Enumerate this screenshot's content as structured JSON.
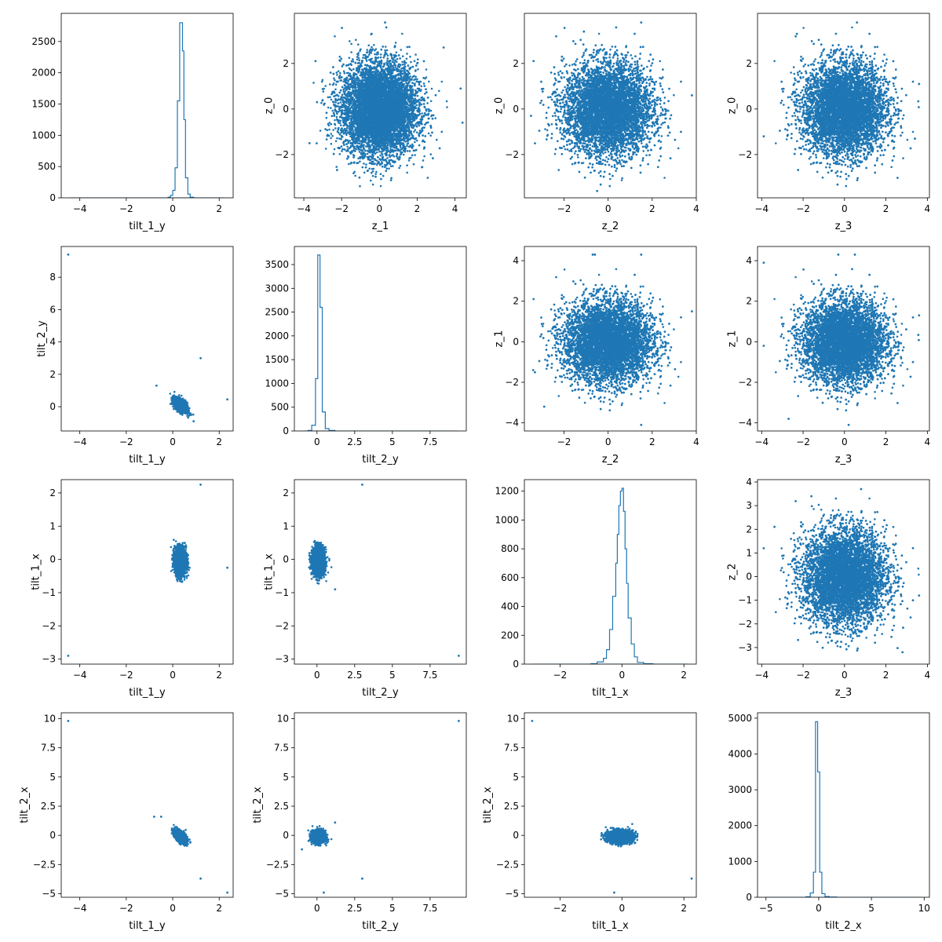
{
  "figure": {
    "color": "#1f77b4"
  },
  "chart_data": [
    {
      "type": "histogram",
      "xlabel": "tilt_1_y",
      "ylabel": "",
      "xlim": [
        -4.8,
        2.6
      ],
      "ylim": [
        0,
        2950
      ],
      "xticks": [
        -4,
        -2,
        0,
        2
      ],
      "yticks": [
        0,
        500,
        1000,
        1500,
        2000,
        2500
      ],
      "bins": [
        [
          -0.2,
          -0.1,
          10
        ],
        [
          -0.1,
          0.0,
          40
        ],
        [
          0.0,
          0.1,
          120
        ],
        [
          0.1,
          0.2,
          480
        ],
        [
          0.2,
          0.3,
          1550
        ],
        [
          0.3,
          0.35,
          2800
        ],
        [
          0.35,
          0.42,
          2800
        ],
        [
          0.42,
          0.48,
          2350
        ],
        [
          0.48,
          0.55,
          1250
        ],
        [
          0.55,
          0.65,
          320
        ],
        [
          0.65,
          0.75,
          60
        ],
        [
          0.75,
          0.9,
          10
        ]
      ]
    },
    {
      "type": "scatter",
      "xlabel": "z_1",
      "ylabel": "z_0",
      "xlim": [
        -4.5,
        4.6
      ],
      "ylim": [
        -3.9,
        4.2
      ],
      "xticks": [
        -4,
        -2,
        0,
        2,
        4
      ],
      "yticks": [
        -2,
        0,
        2
      ],
      "cloud": {
        "n": 9000,
        "cx": 0,
        "cy": 0,
        "sx": 1,
        "sy": 1,
        "clip": [
          -3.6,
          3.7,
          -3.5,
          3.6
        ]
      },
      "points": [
        [
          4.3,
          0.9
        ],
        [
          4.4,
          -0.6
        ],
        [
          0.3,
          3.8
        ],
        [
          -3.7,
          -1.5
        ],
        [
          3.4,
          2.7
        ],
        [
          -3.3,
          0.3
        ]
      ]
    },
    {
      "type": "scatter",
      "xlabel": "z_2",
      "ylabel": "z_0",
      "xlim": [
        -3.8,
        4.0
      ],
      "ylim": [
        -3.9,
        4.2
      ],
      "xticks": [
        -2,
        0,
        2,
        4
      ],
      "yticks": [
        -2,
        0,
        2
      ],
      "cloud": {
        "n": 9000,
        "cx": 0,
        "cy": 0,
        "sx": 1,
        "sy": 1,
        "clip": [
          -3.4,
          3.5,
          -3.5,
          3.6
        ]
      },
      "points": [
        [
          3.8,
          0.6
        ],
        [
          -3.5,
          -0.3
        ],
        [
          -0.5,
          -3.6
        ],
        [
          1.5,
          3.8
        ],
        [
          -1.1,
          3.4
        ]
      ]
    },
    {
      "type": "scatter",
      "xlabel": "z_3",
      "ylabel": "z_0",
      "xlim": [
        -4.2,
        4.1
      ],
      "ylim": [
        -3.9,
        4.2
      ],
      "xticks": [
        -4,
        -2,
        0,
        2,
        4
      ],
      "yticks": [
        -2,
        0,
        2
      ],
      "cloud": {
        "n": 9000,
        "cx": 0,
        "cy": 0,
        "sx": 1,
        "sy": 1,
        "clip": [
          -3.7,
          3.6,
          -3.5,
          3.6
        ]
      },
      "points": [
        [
          -3.9,
          -1.2
        ],
        [
          3.6,
          1.1
        ],
        [
          -2.3,
          3.3
        ],
        [
          0.6,
          3.8
        ],
        [
          3.4,
          -1.3
        ]
      ]
    },
    {
      "type": "scatter",
      "xlabel": "tilt_1_y",
      "ylabel": "tilt_2_y",
      "xlim": [
        -4.8,
        2.6
      ],
      "ylim": [
        -1.5,
        9.9
      ],
      "xticks": [
        -4,
        -2,
        0,
        2
      ],
      "yticks": [
        0,
        2,
        4,
        6,
        8
      ],
      "cloud": {
        "n": 2500,
        "cx": 0.33,
        "cy": 0.1,
        "sx": 0.13,
        "sy": 0.2,
        "rho": -0.5,
        "clip": [
          -0.9,
          1.0,
          -1.0,
          1.4
        ]
      },
      "points": [
        [
          -4.5,
          9.4
        ],
        [
          1.2,
          3.0
        ],
        [
          2.35,
          0.45
        ],
        [
          -0.7,
          1.3
        ],
        [
          0.9,
          -0.9
        ],
        [
          0.8,
          -0.5
        ]
      ]
    },
    {
      "type": "histogram",
      "xlabel": "tilt_2_y",
      "ylabel": "",
      "xlim": [
        -1.5,
        9.9
      ],
      "ylim": [
        0,
        3880
      ],
      "xticks": [
        0,
        2.5,
        5,
        7.5
      ],
      "yticks": [
        0,
        500,
        1000,
        1500,
        2000,
        2500,
        3000,
        3500
      ],
      "bins": [
        [
          -0.6,
          -0.35,
          10
        ],
        [
          -0.35,
          -0.1,
          120
        ],
        [
          -0.1,
          0.05,
          1100
        ],
        [
          0.05,
          0.2,
          3700
        ],
        [
          0.2,
          0.35,
          2600
        ],
        [
          0.35,
          0.55,
          400
        ],
        [
          0.55,
          0.8,
          50
        ],
        [
          0.8,
          1.2,
          10
        ]
      ]
    },
    {
      "type": "scatter",
      "xlabel": "z_2",
      "ylabel": "z_1",
      "xlim": [
        -3.8,
        4.0
      ],
      "ylim": [
        -4.4,
        4.7
      ],
      "xticks": [
        -2,
        0,
        2,
        4
      ],
      "yticks": [
        -4,
        -2,
        0,
        2,
        4
      ],
      "cloud": {
        "n": 9000,
        "cx": 0,
        "cy": 0,
        "sx": 1,
        "sy": 1,
        "clip": [
          -3.4,
          3.5,
          -3.8,
          3.8
        ]
      },
      "points": [
        [
          -0.7,
          4.3
        ],
        [
          -0.6,
          4.3
        ],
        [
          1.5,
          4.3
        ],
        [
          3.8,
          1.5
        ],
        [
          1.5,
          -4.1
        ],
        [
          -3.4,
          -1.4
        ],
        [
          -2.9,
          -3.2
        ]
      ]
    },
    {
      "type": "scatter",
      "xlabel": "z_3",
      "ylabel": "z_1",
      "xlim": [
        -4.2,
        4.1
      ],
      "ylim": [
        -4.4,
        4.7
      ],
      "xticks": [
        -4,
        -2,
        0,
        2,
        4
      ],
      "yticks": [
        -4,
        -2,
        0,
        2,
        4
      ],
      "cloud": {
        "n": 9000,
        "cx": 0,
        "cy": 0,
        "sx": 1,
        "sy": 1,
        "clip": [
          -3.7,
          3.6,
          -3.8,
          3.8
        ]
      },
      "points": [
        [
          -3.9,
          3.9
        ],
        [
          -0.3,
          4.3
        ],
        [
          0.5,
          4.3
        ],
        [
          3.6,
          1.3
        ],
        [
          -3.9,
          -0.2
        ],
        [
          0.2,
          -4.1
        ],
        [
          -2.7,
          -3.8
        ]
      ]
    },
    {
      "type": "scatter",
      "xlabel": "tilt_1_y",
      "ylabel": "tilt_1_x",
      "xlim": [
        -4.8,
        2.6
      ],
      "ylim": [
        -3.15,
        2.4
      ],
      "xticks": [
        -4,
        -2,
        0,
        2
      ],
      "yticks": [
        -3,
        -2,
        -1,
        0,
        1,
        2
      ],
      "cloud": {
        "n": 2500,
        "cx": 0.33,
        "cy": -0.05,
        "sx": 0.12,
        "sy": 0.2,
        "rho": 0,
        "clip": [
          -0.8,
          0.9,
          -0.9,
          0.6
        ]
      },
      "points": [
        [
          -4.5,
          -2.9
        ],
        [
          1.2,
          2.25
        ],
        [
          2.35,
          -0.25
        ]
      ]
    },
    {
      "type": "scatter",
      "xlabel": "tilt_2_y",
      "ylabel": "tilt_1_x",
      "xlim": [
        -1.5,
        9.9
      ],
      "ylim": [
        -3.15,
        2.4
      ],
      "xticks": [
        0,
        2.5,
        5,
        7.5
      ],
      "yticks": [
        -3,
        -2,
        -1,
        0,
        1,
        2
      ],
      "cloud": {
        "n": 2500,
        "cx": 0.1,
        "cy": -0.05,
        "sx": 0.2,
        "sy": 0.2,
        "rho": 0,
        "clip": [
          -1.0,
          1.4,
          -0.9,
          0.6
        ]
      },
      "points": [
        [
          9.4,
          -2.9
        ],
        [
          3.0,
          2.25
        ],
        [
          0.45,
          -0.25
        ],
        [
          1.2,
          -0.9
        ]
      ]
    },
    {
      "type": "histogram",
      "xlabel": "tilt_1_x",
      "ylabel": "",
      "xlim": [
        -3.15,
        2.4
      ],
      "ylim": [
        0,
        1280
      ],
      "xticks": [
        -2,
        0,
        2
      ],
      "yticks": [
        0,
        200,
        400,
        600,
        800,
        1000,
        1200
      ],
      "bins": [
        [
          -1.0,
          -0.8,
          3
        ],
        [
          -0.8,
          -0.6,
          15
        ],
        [
          -0.6,
          -0.5,
          40
        ],
        [
          -0.5,
          -0.4,
          100
        ],
        [
          -0.4,
          -0.3,
          240
        ],
        [
          -0.3,
          -0.2,
          470
        ],
        [
          -0.2,
          -0.15,
          700
        ],
        [
          -0.15,
          -0.1,
          900
        ],
        [
          -0.1,
          -0.05,
          1100
        ],
        [
          -0.05,
          0.0,
          1200
        ],
        [
          0.0,
          0.05,
          1220
        ],
        [
          0.05,
          0.1,
          1060
        ],
        [
          0.1,
          0.15,
          800
        ],
        [
          0.15,
          0.2,
          560
        ],
        [
          0.2,
          0.3,
          320
        ],
        [
          0.3,
          0.4,
          140
        ],
        [
          0.4,
          0.5,
          50
        ],
        [
          0.5,
          0.7,
          12
        ],
        [
          0.7,
          1.0,
          3
        ]
      ]
    },
    {
      "type": "scatter",
      "xlabel": "z_3",
      "ylabel": "z_2",
      "xlim": [
        -4.2,
        4.1
      ],
      "ylim": [
        -3.7,
        4.1
      ],
      "xticks": [
        -4,
        -2,
        0,
        2,
        4
      ],
      "yticks": [
        -3,
        -2,
        -1,
        0,
        1,
        2,
        3,
        4
      ],
      "cloud": {
        "n": 9000,
        "cx": 0,
        "cy": 0,
        "sx": 1,
        "sy": 1,
        "clip": [
          -3.7,
          3.6,
          -3.3,
          3.5
        ]
      },
      "points": [
        [
          3.6,
          -0.8
        ],
        [
          -3.9,
          1.2
        ],
        [
          0.8,
          3.7
        ],
        [
          2.8,
          -3.2
        ],
        [
          -1.6,
          3.4
        ]
      ]
    },
    {
      "type": "scatter",
      "xlabel": "tilt_1_y",
      "ylabel": "tilt_2_x",
      "xlim": [
        -4.8,
        2.6
      ],
      "ylim": [
        -5.3,
        10.5
      ],
      "xticks": [
        -4,
        -2,
        0,
        2
      ],
      "yticks": [
        -5,
        -2.5,
        0,
        2.5,
        5,
        7.5,
        10
      ],
      "cloud": {
        "n": 2500,
        "cx": 0.33,
        "cy": -0.1,
        "sx": 0.12,
        "sy": 0.25,
        "rho": -0.6,
        "clip": [
          -0.9,
          1.0,
          -1.5,
          1.7
        ]
      },
      "points": [
        [
          -4.5,
          9.8
        ],
        [
          1.2,
          -3.7
        ],
        [
          2.35,
          -4.9
        ],
        [
          -0.8,
          1.6
        ],
        [
          -0.5,
          1.6
        ]
      ]
    },
    {
      "type": "scatter",
      "xlabel": "tilt_2_y",
      "ylabel": "tilt_2_x",
      "xlim": [
        -1.5,
        9.9
      ],
      "ylim": [
        -5.3,
        10.5
      ],
      "xticks": [
        0,
        2.5,
        5,
        7.5
      ],
      "yticks": [
        -5,
        -2.5,
        0,
        2.5,
        5,
        7.5,
        10
      ],
      "cloud": {
        "n": 2500,
        "cx": 0.1,
        "cy": -0.1,
        "sx": 0.2,
        "sy": 0.25,
        "rho": 0,
        "clip": [
          -1.0,
          1.4,
          -1.5,
          1.7
        ]
      },
      "points": [
        [
          9.4,
          9.8
        ],
        [
          3.0,
          -3.7
        ],
        [
          0.45,
          -4.9
        ],
        [
          -1.0,
          -1.2
        ],
        [
          1.2,
          1.1
        ]
      ]
    },
    {
      "type": "scatter",
      "xlabel": "tilt_1_x",
      "ylabel": "tilt_2_x",
      "xlim": [
        -3.15,
        2.4
      ],
      "ylim": [
        -5.3,
        10.5
      ],
      "xticks": [
        -2,
        0,
        2
      ],
      "yticks": [
        -5,
        -2.5,
        0,
        2.5,
        5,
        7.5,
        10
      ],
      "cloud": {
        "n": 2500,
        "cx": -0.05,
        "cy": -0.1,
        "sx": 0.2,
        "sy": 0.25,
        "rho": 0,
        "clip": [
          -0.9,
          0.6,
          -1.5,
          1.7
        ]
      },
      "points": [
        [
          -2.9,
          9.8
        ],
        [
          2.25,
          -3.7
        ],
        [
          -0.25,
          -4.9
        ]
      ]
    },
    {
      "type": "histogram",
      "xlabel": "tilt_2_x",
      "ylabel": "",
      "xlim": [
        -5.8,
        10.5
      ],
      "ylim": [
        0,
        5150
      ],
      "xticks": [
        -5,
        0,
        5,
        10
      ],
      "yticks": [
        0,
        1000,
        2000,
        3000,
        4000,
        5000
      ],
      "bins": [
        [
          -1.2,
          -0.8,
          15
        ],
        [
          -0.8,
          -0.5,
          120
        ],
        [
          -0.5,
          -0.3,
          700
        ],
        [
          -0.3,
          -0.1,
          4900
        ],
        [
          -0.1,
          0.1,
          3500
        ],
        [
          0.1,
          0.3,
          700
        ],
        [
          0.3,
          0.6,
          100
        ],
        [
          0.6,
          1.0,
          20
        ],
        [
          1.0,
          1.7,
          5
        ]
      ]
    }
  ]
}
